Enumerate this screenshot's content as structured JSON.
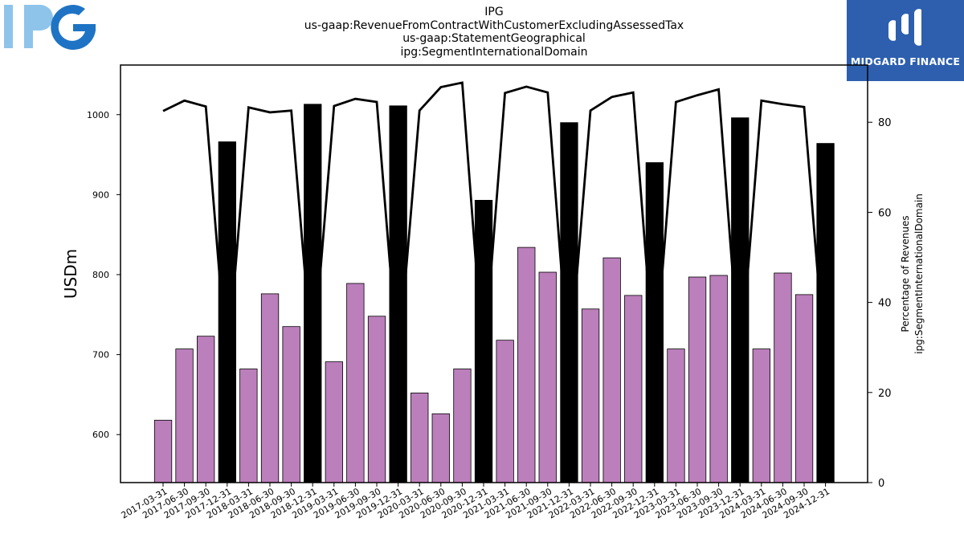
{
  "header": {
    "lines": [
      "IPG",
      "us-gaap:RevenueFromContractWithCustomerExcludingAssessedTax",
      "us-gaap:StatementGeographical",
      "ipg:SegmentInternationalDomain"
    ]
  },
  "logos": {
    "left": {
      "text": "IPG",
      "icon": "ipg-logo",
      "colors": [
        "#8ec4ea",
        "#1e73c4"
      ]
    },
    "right": {
      "text": "MIDGARD FINANCE",
      "icon": "midgard-finance-logo",
      "background": "#2d5fae"
    }
  },
  "chart_data": {
    "type": "bar",
    "title": "",
    "xlabel": "",
    "ylabel": "USDm",
    "y2label_lines": [
      "Percentage of Revenues",
      "ipg:SegmentInternationalDomain"
    ],
    "ylim": [
      540,
      1062
    ],
    "y2lim": [
      0,
      92.7
    ],
    "yticks": [
      600,
      700,
      800,
      900,
      1000
    ],
    "y2ticks": [
      0,
      20,
      40,
      60,
      80
    ],
    "grid": false,
    "legend": "none",
    "colors": {
      "quarter": "#bb7fbb",
      "annual": "#000000",
      "line": "#000000"
    },
    "categories": [
      "2017-03-31",
      "2017-06-30",
      "2017-09-30",
      "2017-12-31",
      "2018-03-31",
      "2018-06-30",
      "2018-09-30",
      "2018-12-31",
      "2019-03-31",
      "2019-06-30",
      "2019-09-30",
      "2019-12-31",
      "2020-03-31",
      "2020-06-30",
      "2020-09-30",
      "2020-12-31",
      "2021-03-31",
      "2021-06-30",
      "2021-09-30",
      "2021-12-31",
      "2022-03-31",
      "2022-06-30",
      "2022-09-30",
      "2022-12-31",
      "2023-03-31",
      "2023-06-30",
      "2023-09-30",
      "2023-12-31",
      "2024-03-31",
      "2024-06-30",
      "2024-09-30",
      "2024-12-31"
    ],
    "series": [
      {
        "type": "bar",
        "values": [
          618,
          707,
          723,
          966,
          682,
          776,
          735,
          1013,
          691,
          789,
          748,
          1011,
          652,
          626,
          682,
          893,
          718,
          834,
          803,
          990,
          757,
          821,
          774,
          940,
          707,
          797,
          799,
          996,
          707,
          802,
          775,
          964
        ]
      },
      {
        "type": "line",
        "axis": "right",
        "values": [
          82.5,
          84.8,
          83.5,
          25,
          83.3,
          82.2,
          82.6,
          26,
          83.6,
          85.2,
          84.5,
          26,
          82.6,
          87.8,
          88.8,
          26,
          86.5,
          87.9,
          86.6,
          25,
          82.6,
          85.6,
          86.6,
          25,
          84.5,
          86.0,
          87.3,
          25,
          84.8,
          84.0,
          83.4,
          25
        ]
      }
    ]
  }
}
